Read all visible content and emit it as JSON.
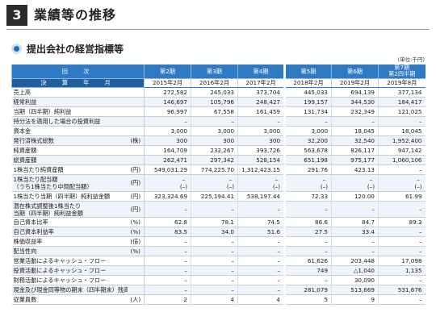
{
  "section": {
    "number": "3",
    "title": "業績等の推移"
  },
  "subsection": {
    "title": "提出会社の経営指標等",
    "unit": "(単位:千円)"
  },
  "header": {
    "period_label": "回　次",
    "date_label": "決　算　年　月",
    "periods": [
      "第2期",
      "第3期",
      "第4期",
      "第5期",
      "第6期",
      "第7期第2四半期"
    ],
    "period_line1_last": "第7期",
    "period_line2_last": "第2四半期",
    "dates": [
      "2015年2月",
      "2016年2月",
      "2017年2月",
      "2018年2月",
      "2019年2月",
      "2019年8月"
    ]
  },
  "rows": [
    {
      "label": "売上高",
      "unit": "",
      "values": [
        "272,582",
        "245,033",
        "373,704",
        "445,033",
        "694,139",
        "377,134"
      ]
    },
    {
      "label": "経常利益",
      "unit": "",
      "values": [
        "146,697",
        "105,796",
        "248,427",
        "199,157",
        "344,530",
        "184,417"
      ]
    },
    {
      "label": "当期（四半期）純利益",
      "unit": "",
      "values": [
        "96,997",
        "67,558",
        "161,459",
        "131,734",
        "232,349",
        "121,025"
      ]
    },
    {
      "label": "持分法を適用した場合の投資利益",
      "unit": "",
      "values": [
        "–",
        "–",
        "–",
        "–",
        "–",
        "–"
      ]
    },
    {
      "label": "資本金",
      "unit": "",
      "values": [
        "3,000",
        "3,000",
        "3,000",
        "3,000",
        "18,045",
        "18,045"
      ]
    },
    {
      "label": "発行済株式総数",
      "unit": "(株)",
      "values": [
        "300",
        "300",
        "300",
        "32,200",
        "32,540",
        "1,952,400"
      ]
    },
    {
      "label": "純資産額",
      "unit": "",
      "values": [
        "164,709",
        "232,267",
        "393,726",
        "563,678",
        "826,117",
        "947,142"
      ]
    },
    {
      "label": "総資産額",
      "unit": "",
      "values": [
        "262,471",
        "297,342",
        "528,154",
        "651,198",
        "975,177",
        "1,060,106"
      ]
    },
    {
      "label": "1株当たり純資産額",
      "unit": "(円)",
      "values": [
        "549,031.29",
        "774,225.70",
        "1,312,423.15",
        "291.76",
        "423.13",
        "–"
      ]
    },
    {
      "label": "1株当たり配当額",
      "label2": "（うち1株当たり中間配当額）",
      "unit": "(円)",
      "values": [
        "–",
        "–",
        "–",
        "–",
        "–",
        "–"
      ],
      "values2": [
        "(–)",
        "(–)",
        "(–)",
        "(–)",
        "(–)",
        "(–)"
      ]
    },
    {
      "label": "1株当たり当期（四半期）純利益金額",
      "unit": "(円)",
      "values": [
        "323,324.69",
        "225,194.41",
        "538,197.44",
        "72.33",
        "120.00",
        "61.99"
      ]
    },
    {
      "label": "潜在株式調整後1株当たり",
      "label2": "当期（四半期）純利益金額",
      "unit": "(円)",
      "values": [
        "–",
        "–",
        "–",
        "–",
        "–",
        "–"
      ]
    },
    {
      "label": "自己資本比率",
      "unit": "(%)",
      "values": [
        "62.8",
        "78.1",
        "74.5",
        "86.6",
        "84.7",
        "89.3"
      ]
    },
    {
      "label": "自己資本利益率",
      "unit": "(%)",
      "values": [
        "83.5",
        "34.0",
        "51.6",
        "27.5",
        "33.4",
        "–"
      ]
    },
    {
      "label": "株価収益率",
      "unit": "(倍)",
      "values": [
        "–",
        "–",
        "–",
        "–",
        "–",
        "–"
      ]
    },
    {
      "label": "配当性向",
      "unit": "(%)",
      "values": [
        "–",
        "–",
        "–",
        "–",
        "–",
        "–"
      ]
    },
    {
      "label": "営業活動によるキャッシュ・フロー",
      "unit": "",
      "values": [
        "–",
        "–",
        "–",
        "61,626",
        "203,448",
        "17,098"
      ]
    },
    {
      "label": "投資活動によるキャッシュ・フロー",
      "unit": "",
      "values": [
        "–",
        "–",
        "–",
        "749",
        "△1,040",
        "1,135"
      ]
    },
    {
      "label": "財務活動によるキャッシュ・フロー",
      "unit": "",
      "values": [
        "–",
        "–",
        "–",
        "–",
        "30,090",
        "–"
      ]
    },
    {
      "label": "現金及び現金同等物の期末（四半期末）残高",
      "unit": "",
      "values": [
        "–",
        "–",
        "–",
        "281,079",
        "513,669",
        "531,676"
      ]
    },
    {
      "label": "従業員数",
      "unit": "(人)",
      "values": [
        "2",
        "4",
        "4",
        "5",
        "9",
        "–"
      ]
    }
  ]
}
